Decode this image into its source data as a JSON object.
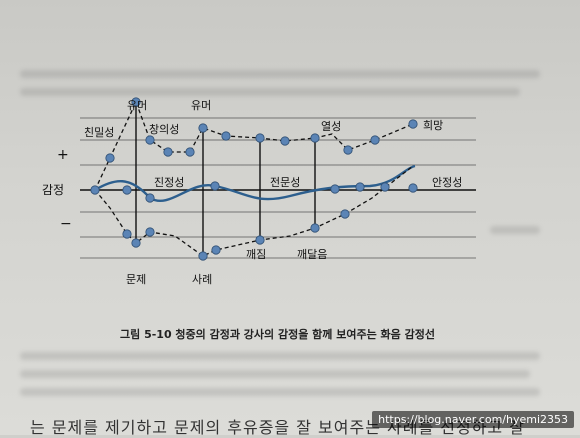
{
  "figure": {
    "caption": "그림 5-10  청중의 감정과 강사의 감정을 함께 보여주는 화음 감정선",
    "axis": {
      "plus": "+",
      "minus": "−",
      "emotion": "감정"
    },
    "labels": {
      "intimacy": "친밀성",
      "humor1": "유머",
      "creativity": "창의성",
      "humor2": "유머",
      "passion": "열성",
      "hope": "희망",
      "sincerity": "진정성",
      "expertise": "전문성",
      "stability": "안정성",
      "problem": "문제",
      "case": "사례",
      "breaking": "깨짐",
      "realization": "깨달음"
    }
  },
  "bottom_text": "는 문제를 제기하고 문제의 후유증을 잘 보여주는 사례를 선정하고 잘",
  "watermark": "https://blog.naver.com/hyemi2353"
}
